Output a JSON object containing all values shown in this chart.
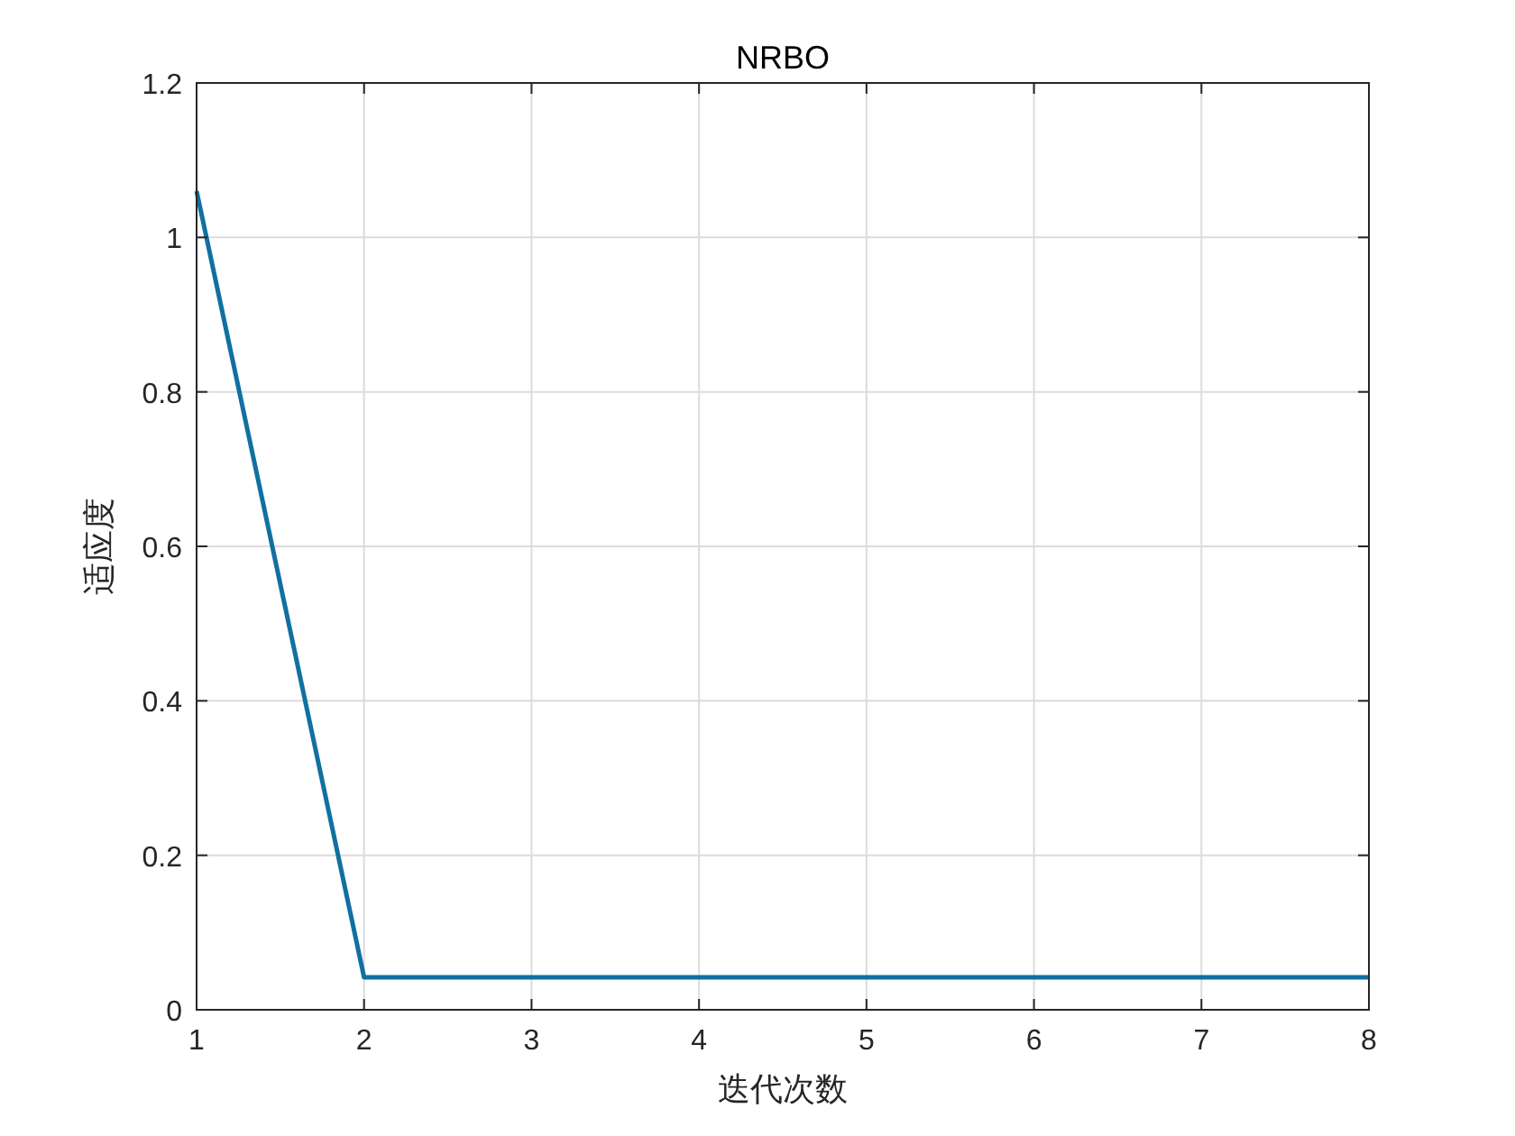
{
  "chart_data": {
    "type": "line",
    "title": "NRBO",
    "xlabel": "迭代次数",
    "ylabel": "适应度",
    "x": [
      1,
      2,
      3,
      4,
      5,
      6,
      7,
      8
    ],
    "series": [
      {
        "color": "#1170a0",
        "values": [
          1.06,
          0.042,
          0.042,
          0.042,
          0.042,
          0.042,
          0.042,
          0.042
        ]
      }
    ],
    "xlim": [
      1,
      8
    ],
    "xticks": [
      1,
      2,
      3,
      4,
      5,
      6,
      7,
      8
    ],
    "ylim": [
      0,
      1.2
    ],
    "yticks": [
      0,
      0.2,
      0.4,
      0.6,
      0.8,
      1,
      1.2
    ],
    "grid": true,
    "marker": "none",
    "line_style": "solid"
  }
}
